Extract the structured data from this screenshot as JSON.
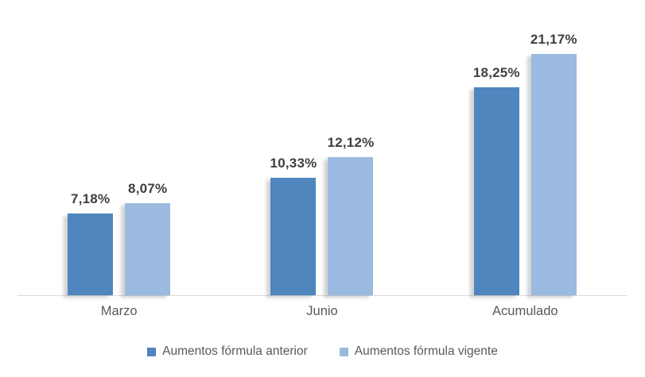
{
  "chart_data": {
    "type": "bar",
    "title": "",
    "xlabel": "",
    "ylabel": "",
    "categories": [
      "Marzo",
      "Junio",
      "Acumulado"
    ],
    "series": [
      {
        "name": "Aumentos fórmula anterior",
        "color": "#4e86bd",
        "values": [
          7.18,
          10.33,
          18.25
        ],
        "labels": [
          "7,18%",
          "10,33%",
          "18,25%"
        ]
      },
      {
        "name": "Aumentos fórmula vigente",
        "color": "#9bbadf",
        "values": [
          8.07,
          12.12,
          21.17
        ],
        "labels": [
          "8,07%",
          "12,12%",
          "21,17%"
        ]
      }
    ],
    "ylim": [
      0,
      23.7
    ],
    "grid": false,
    "axis_line_color": "#d9d9d9",
    "data_label_color": "#3f3f3f",
    "text_color": "#595959",
    "legend_position": "bottom",
    "value_format": "percent_comma_decimal"
  }
}
